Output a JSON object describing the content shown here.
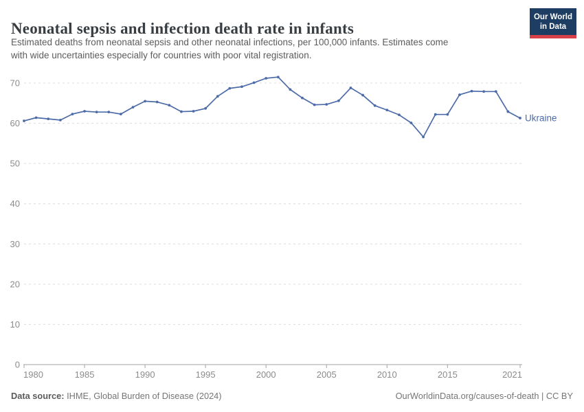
{
  "header": {
    "title": "Neonatal sepsis and infection death rate in infants",
    "subtitle_lines": [
      "Estimated deaths from neonatal sepsis and other neonatal infections, per 100,000 infants. Estimates come",
      "with wide uncertainties especially for countries with poor vital registration."
    ],
    "logo": {
      "line1": "Our World",
      "line2": "in Data"
    }
  },
  "footer": {
    "source_label": "Data source:",
    "source_text": " IHME, Global Burden of Disease (2024)",
    "credit": "OurWorldinData.org/causes-of-death | CC BY"
  },
  "chart_data": {
    "type": "line",
    "title": "Neonatal sepsis and infection death rate in infants",
    "xlabel": "",
    "ylabel": "",
    "x": [
      1980,
      1981,
      1982,
      1983,
      1984,
      1985,
      1986,
      1987,
      1988,
      1989,
      1990,
      1991,
      1992,
      1993,
      1994,
      1995,
      1996,
      1997,
      1998,
      1999,
      2000,
      2001,
      2002,
      2003,
      2004,
      2005,
      2006,
      2007,
      2008,
      2009,
      2010,
      2011,
      2012,
      2013,
      2014,
      2015,
      2016,
      2017,
      2018,
      2019,
      2020,
      2021
    ],
    "series": [
      {
        "name": "Ukraine",
        "values": [
          60.6,
          61.4,
          61.1,
          60.8,
          62.3,
          63.0,
          62.8,
          62.8,
          62.3,
          64.0,
          65.5,
          65.3,
          64.5,
          62.9,
          63.0,
          63.7,
          66.7,
          68.7,
          69.1,
          70.1,
          71.2,
          71.5,
          68.4,
          66.3,
          64.6,
          64.7,
          65.6,
          68.8,
          67.0,
          64.4,
          63.3,
          62.1,
          60.1,
          56.6,
          62.2,
          62.2,
          67.1,
          68.0,
          67.9,
          67.9,
          62.9,
          61.3
        ]
      }
    ],
    "ylim": [
      0,
      70
    ],
    "yticks": [
      0,
      10,
      20,
      30,
      40,
      50,
      60,
      70
    ],
    "xticks": [
      1980,
      1985,
      1990,
      1995,
      2000,
      2005,
      2010,
      2015,
      2021
    ],
    "grid": "horizontal-dashed",
    "legend": "end-of-line-label"
  },
  "colors": {
    "line": "#4c6ba8",
    "grid": "#dcdcdc",
    "axis": "#a3a3a3",
    "tick_label": "#8b8b8d",
    "series_label": "#4c6ba8",
    "title_text": "#383d42",
    "subtitle_text": "#5b5b5b",
    "logo_bg": "#1d3d63",
    "logo_stripe": "#d8404a"
  }
}
